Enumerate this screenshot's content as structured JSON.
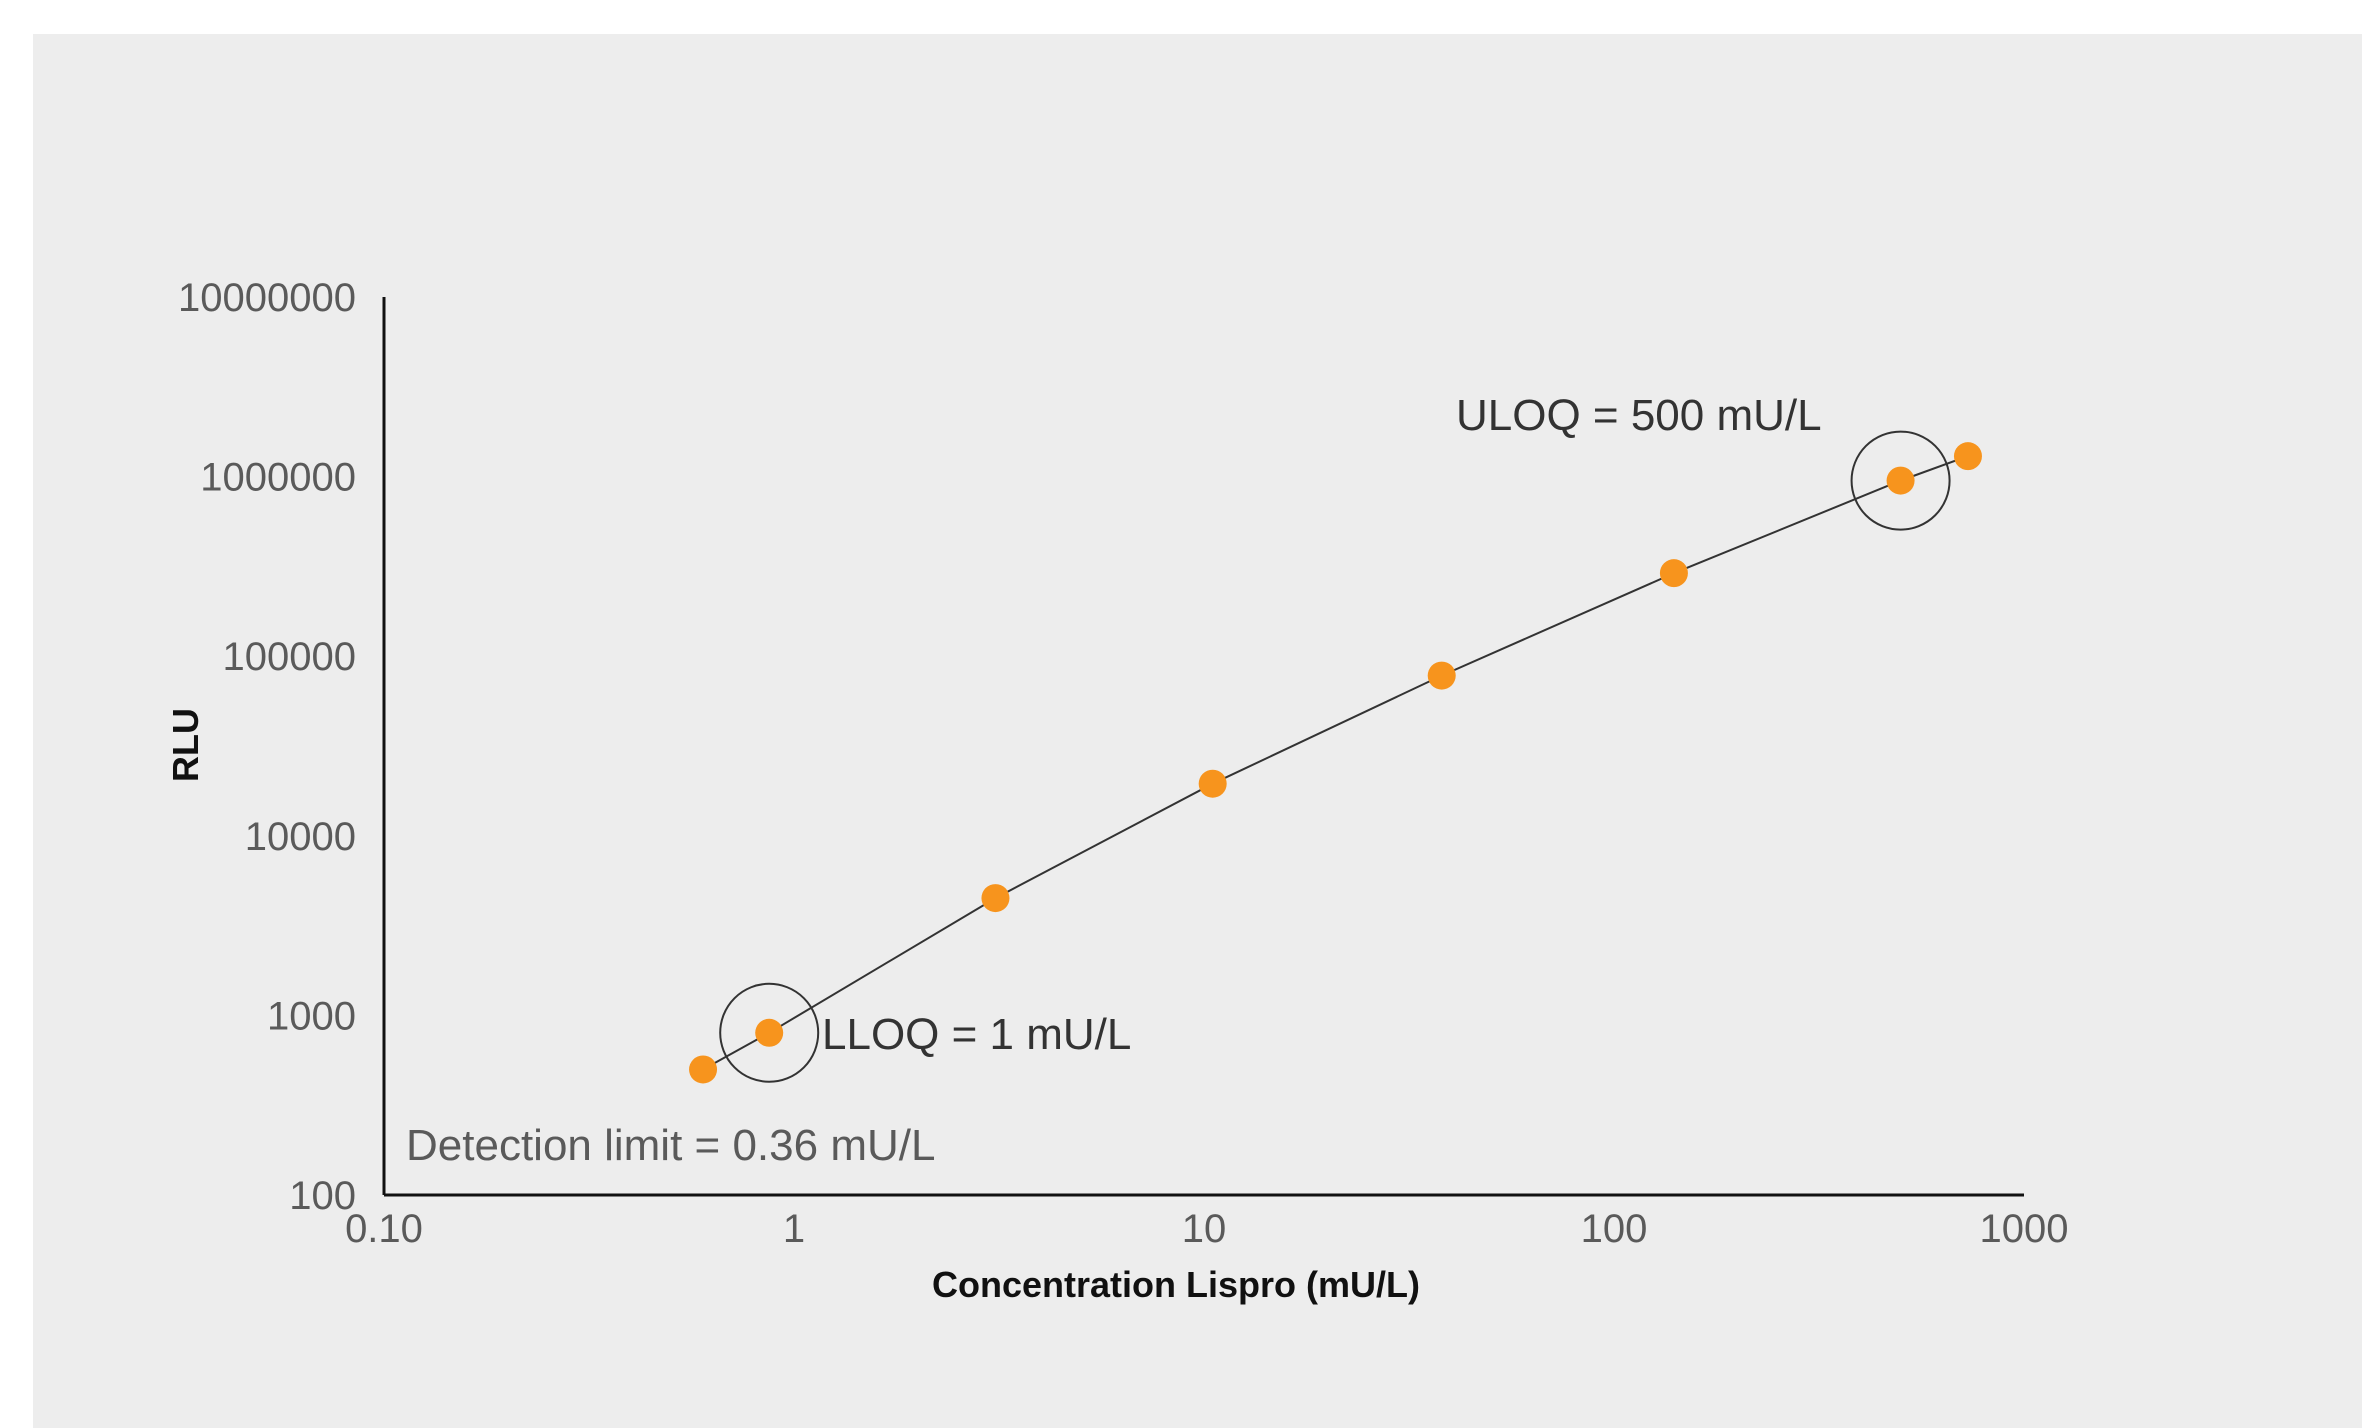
{
  "chart_data": {
    "type": "scatter",
    "title": "",
    "xlabel": "Concentration Lispro (mU/L)",
    "ylabel": "RLU",
    "x_scale": "log",
    "y_scale": "log",
    "xlim": [
      0.1,
      1000
    ],
    "ylim": [
      100,
      10000000
    ],
    "x_ticks": [
      0.1,
      1,
      10,
      100,
      1000
    ],
    "x_tick_labels": [
      "0.10",
      "1",
      "10",
      "100",
      "1000"
    ],
    "y_ticks": [
      100,
      1000,
      10000,
      100000,
      1000000,
      10000000
    ],
    "y_tick_labels": [
      "100",
      "1000",
      "10000",
      "100000",
      "1000000",
      "10000000"
    ],
    "grid": false,
    "colors": {
      "points": "#f7941d",
      "line": "#333333",
      "axis": "#111111"
    },
    "series": [
      {
        "x": [
          0.6,
          0.87,
          3.1,
          10.5,
          38,
          140,
          500,
          730
        ],
        "y": [
          500,
          800,
          4500,
          19500,
          78000,
          290000,
          950000,
          1300000
        ]
      }
    ],
    "annotations": [
      {
        "text": "ULOQ = 500 mU/L",
        "x": 500,
        "y": 950000
      },
      {
        "text": "LLOQ = 1 mU/L",
        "x": 0.87,
        "y": 800
      },
      {
        "text": "Detection limit = 0.36 mU/L"
      }
    ]
  }
}
